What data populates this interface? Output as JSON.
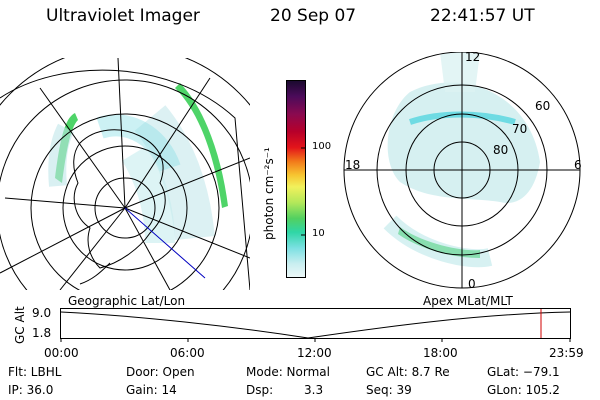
{
  "header": {
    "instrument": "Ultraviolet Imager",
    "date": "20 Sep 07",
    "time": "22:41:57 UT"
  },
  "colorbar": {
    "unit_label": "photon cm⁻²s⁻¹",
    "ticks": [
      "100",
      "10"
    ],
    "colors": [
      "#1a0a2e",
      "#4b0b5a",
      "#8a0a50",
      "#b7002a",
      "#e3141a",
      "#f2791a",
      "#f7c531",
      "#f1f15c",
      "#b3e85a",
      "#52d060",
      "#2fd6a6",
      "#7be0e2",
      "#c9eef0",
      "#eef8f8"
    ]
  },
  "left_map": {
    "caption": "Geographic Lat/Lon"
  },
  "right_map": {
    "caption": "Apex MLat/MLT",
    "mlt_labels": {
      "top": "12",
      "bottom": "0",
      "left": "18",
      "right": "6"
    },
    "lat_labels": [
      "60",
      "70",
      "80"
    ]
  },
  "timeline": {
    "ylabel": "GC Alt",
    "ytick_top": "9.0",
    "ytick_bottom": "1.8",
    "xticks": [
      "00:00",
      "06:00",
      "12:00",
      "18:00",
      "23:59"
    ],
    "marker_color": "#d00000"
  },
  "info": {
    "filter_label": "Flt: LBHL",
    "ip_label": "IP: 36.0",
    "door_label": "Door: Open",
    "gain_label": "Gain: 14",
    "mode_label": "Mode: Normal",
    "dsp_label": "Dsp:",
    "dsp_value": "3.3",
    "gcalt_label": "GC Alt: 8.7 Re",
    "seq_label": "Seq: 39",
    "glat_label": "GLat: −79.1",
    "glon_label": "GLon: 105.2"
  }
}
